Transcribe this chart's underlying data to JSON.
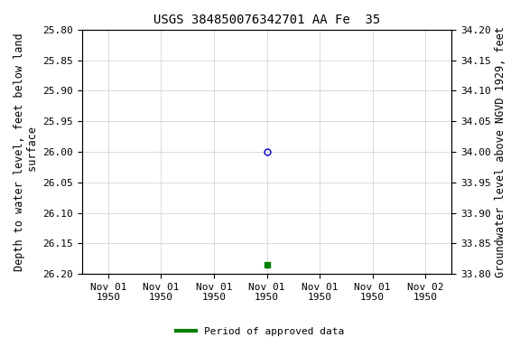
{
  "title": "USGS 384850076342701 AA Fe  35",
  "ylabel_left": "Depth to water level, feet below land\n surface",
  "ylabel_right": "Groundwater level above NGVD 1929, feet",
  "ylim_left": [
    25.8,
    26.2
  ],
  "ylim_right": [
    33.8,
    34.2
  ],
  "yticks_left": [
    25.8,
    25.85,
    25.9,
    25.95,
    26.0,
    26.05,
    26.1,
    26.15,
    26.2
  ],
  "yticks_right": [
    33.8,
    33.85,
    33.9,
    33.95,
    34.0,
    34.05,
    34.1,
    34.15,
    34.2
  ],
  "xtick_labels": [
    "Nov 01\n1950",
    "Nov 01\n1950",
    "Nov 01\n1950",
    "Nov 01\n1950",
    "Nov 01\n1950",
    "Nov 01\n1950",
    "Nov 02\n1950"
  ],
  "xtick_positions": [
    0,
    1,
    2,
    3,
    4,
    5,
    6
  ],
  "xlim": [
    -0.5,
    6.5
  ],
  "data_point1_x": 3,
  "data_point1_y": 26.0,
  "data_point1_color": "#0000cc",
  "data_point1_marker": "o",
  "data_point1_fillstyle": "none",
  "data_point1_size": 5,
  "data_point2_x": 3,
  "data_point2_y": 26.185,
  "data_point2_color": "#008000",
  "data_point2_marker": "s",
  "data_point2_size": 4,
  "background_color": "#ffffff",
  "grid_color": "#cccccc",
  "font_family": "monospace",
  "title_fontsize": 10,
  "tick_fontsize": 8,
  "label_fontsize": 8.5,
  "legend_label": "Period of approved data",
  "legend_color": "#008000"
}
